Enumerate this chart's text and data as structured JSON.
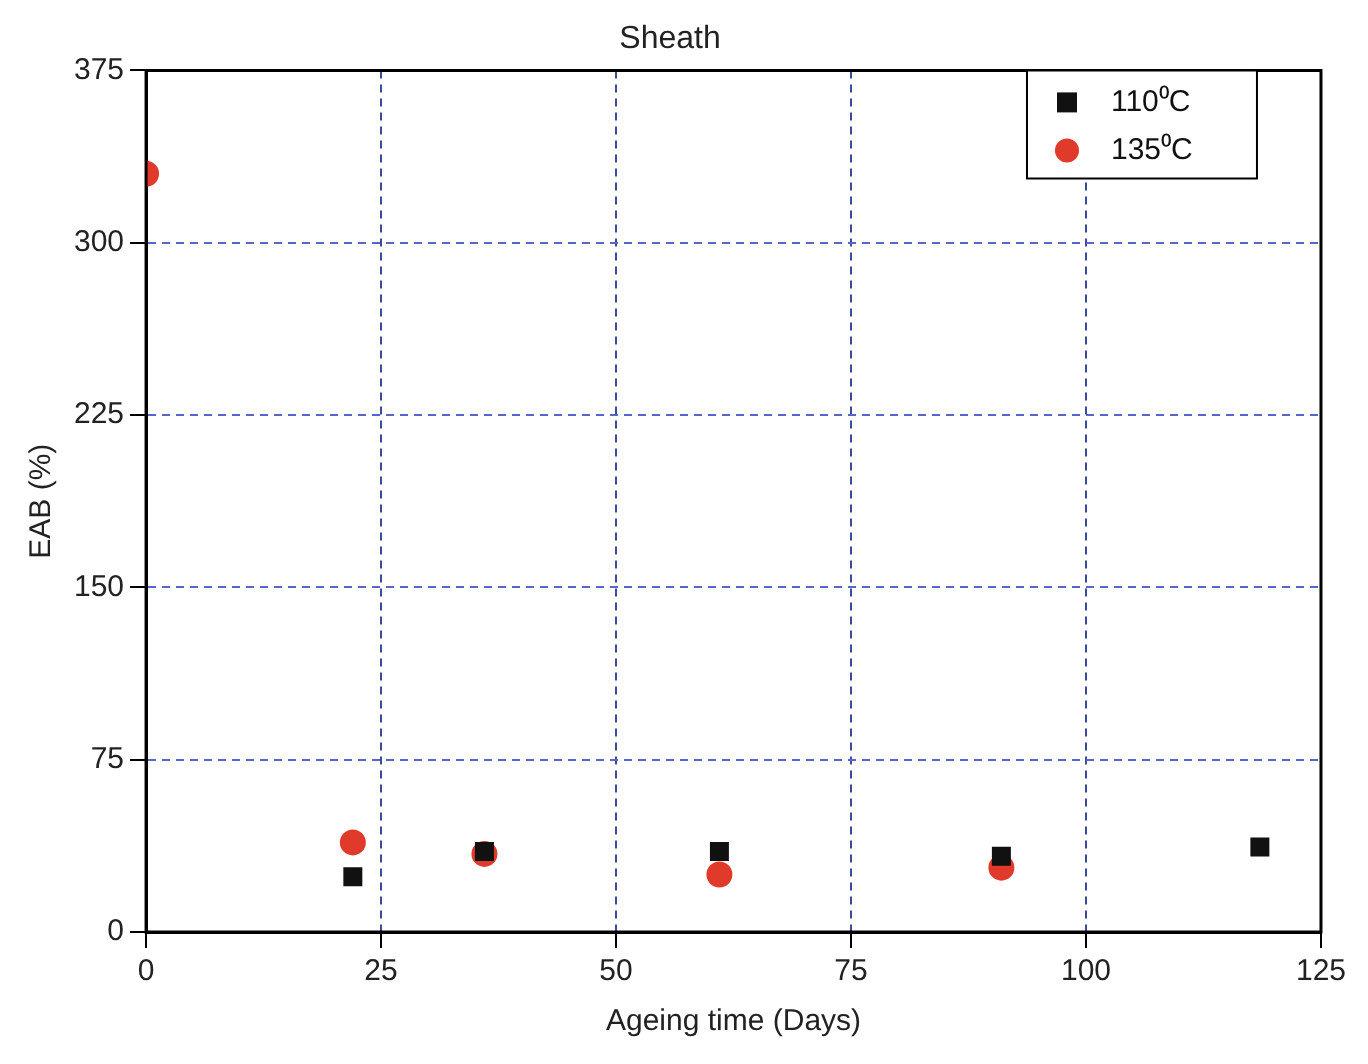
{
  "chart_data": {
    "type": "scatter",
    "title": "Sheath",
    "xlabel": "Ageing time (Days)",
    "ylabel": "EAB (%)",
    "xlim": [
      0,
      125
    ],
    "xticks": [
      0,
      25,
      50,
      75,
      100,
      125
    ],
    "ylim": [
      0,
      375
    ],
    "yticks": [
      0,
      75,
      150,
      225,
      300,
      375
    ],
    "grid": true,
    "legend": "top right",
    "series": [
      {
        "name": "110⁰C",
        "color": "#111111",
        "marker": "square",
        "x": [
          22,
          36,
          61,
          91,
          118.5
        ],
        "values": [
          24,
          35,
          35,
          33,
          37
        ]
      },
      {
        "name": "135⁰C",
        "color": "#e03a2a",
        "marker": "circle",
        "x": [
          0,
          22,
          36,
          61,
          91
        ],
        "values": [
          330,
          39,
          34,
          25,
          28
        ]
      }
    ]
  }
}
